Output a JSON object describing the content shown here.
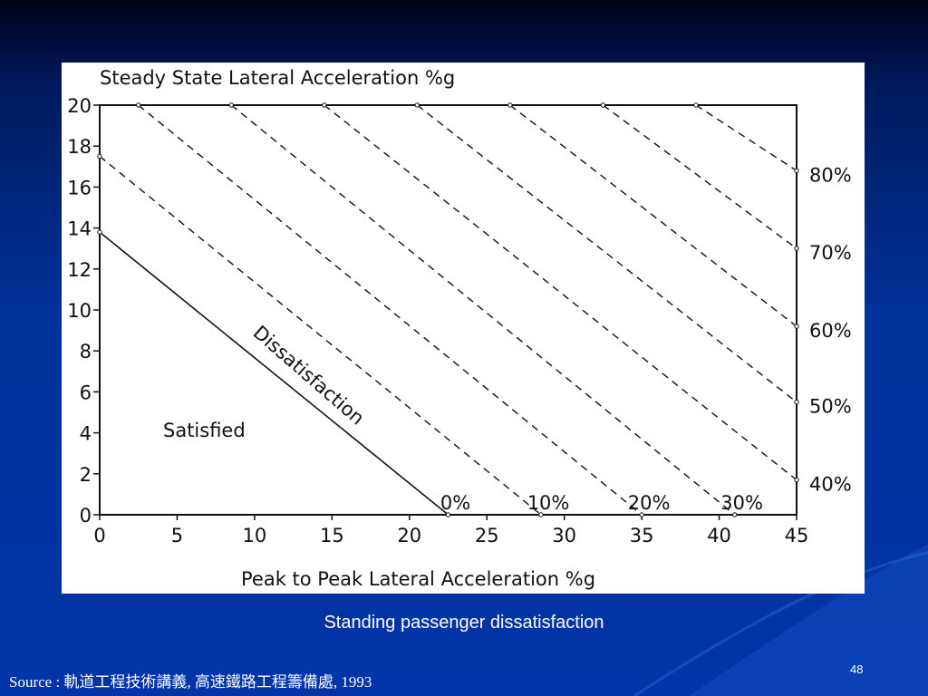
{
  "slide": {
    "caption": "Standing passenger dissatisfaction",
    "source": "Source : 軌道工程技術講義, 高速鐵路工程籌備處, 1993",
    "page_number": "48"
  },
  "chart_data": {
    "type": "line",
    "title": "Steady State Lateral Acceleration %g",
    "xlabel": "Peak to Peak Lateral Acceleration %g",
    "ylabel": "",
    "xlim": [
      0,
      45
    ],
    "ylim": [
      0,
      20
    ],
    "x_ticks": [
      "0",
      "5",
      "10",
      "15",
      "20",
      "25",
      "30",
      "35",
      "40",
      "45"
    ],
    "y_ticks": [
      "0",
      "2",
      "4",
      "6",
      "8",
      "10",
      "12",
      "14",
      "16",
      "18",
      "20"
    ],
    "grid": false,
    "annotations": [
      "Satisfied",
      "Dissatisfaction"
    ],
    "series": [
      {
        "name": "0%",
        "style": "solid",
        "x": [
          0,
          22.5
        ],
        "y": [
          13.8,
          0
        ]
      },
      {
        "name": "10%",
        "style": "dashed",
        "x": [
          0,
          28.5
        ],
        "y": [
          17.5,
          0
        ]
      },
      {
        "name": "20%",
        "style": "dashed",
        "x": [
          2.5,
          35
        ],
        "y": [
          20,
          0
        ]
      },
      {
        "name": "30%",
        "style": "dashed",
        "x": [
          8.5,
          41
        ],
        "y": [
          20,
          0
        ]
      },
      {
        "name": "40%",
        "style": "dashed",
        "x": [
          14.5,
          45
        ],
        "y": [
          20,
          1.7
        ]
      },
      {
        "name": "50%",
        "style": "dashed",
        "x": [
          20.5,
          45
        ],
        "y": [
          20,
          5.5
        ]
      },
      {
        "name": "60%",
        "style": "dashed",
        "x": [
          26.5,
          45
        ],
        "y": [
          20,
          9.2
        ]
      },
      {
        "name": "70%",
        "style": "dashed",
        "x": [
          32.5,
          45
        ],
        "y": [
          20,
          13
        ]
      },
      {
        "name": "80%",
        "style": "dashed",
        "x": [
          38.5,
          45
        ],
        "y": [
          20,
          16.8
        ]
      }
    ]
  }
}
